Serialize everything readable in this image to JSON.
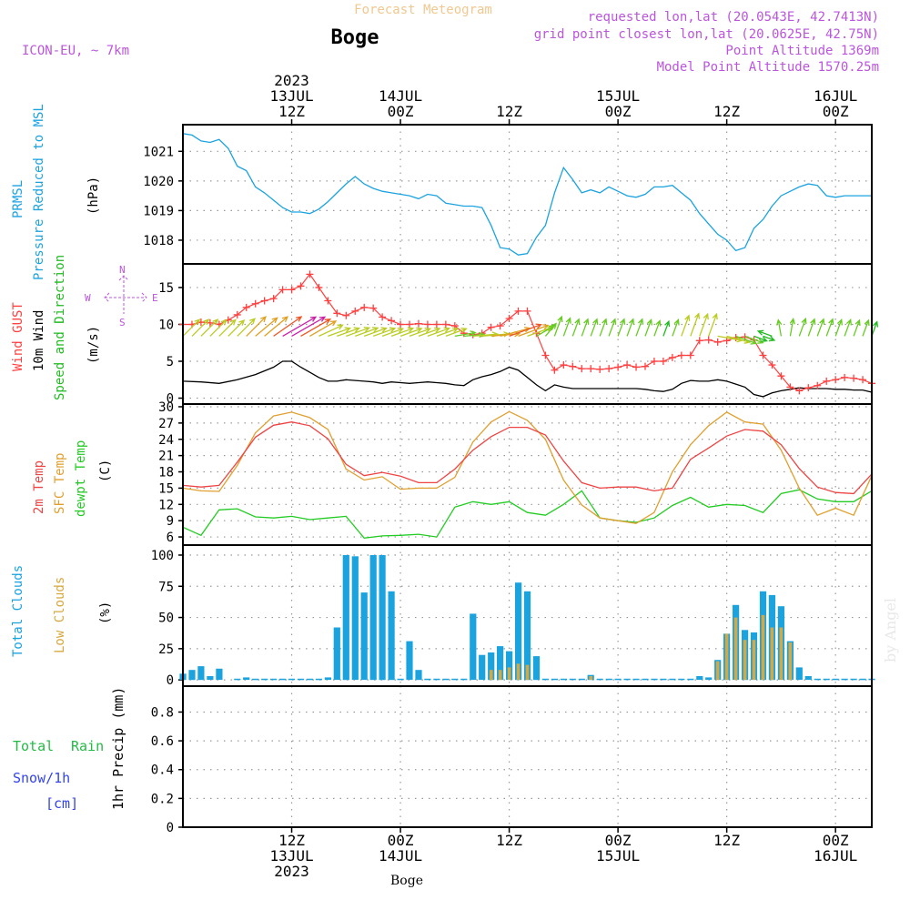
{
  "header": {
    "title_top": "Forecast Meteogram",
    "location": "Boge",
    "model": "ICON-EU, ~ 7km",
    "requested": "requested lon,lat (20.0543E, 42.7413N)",
    "gridpoint": "grid point closest lon,lat (20.0625E, 42.75N)",
    "point_alt": "Point Altitude 1369m",
    "model_alt": "Model Point Altitude 1570.25m",
    "footer_location": "Boge",
    "watermark": "by Angel"
  },
  "colors": {
    "prmsl": "#1ba3e0",
    "wind": "#000000",
    "gust": "#ff4040",
    "dir": "#22bb22",
    "temp": "#ee4444",
    "sfc": "#e0a030",
    "dew": "#22cc22",
    "total_clouds": "#1ba3e0",
    "low_clouds": "#d8a840",
    "rain": "#22bb44",
    "snow": "#3344ee",
    "purple": "#bb55dd",
    "orange_title": "#f0c890"
  },
  "time_axis": {
    "top_labels": [
      {
        "x": 12,
        "lines": [
          "2023",
          "13JUL",
          "12Z"
        ]
      },
      {
        "x": 24,
        "lines": [
          "14JUL",
          "00Z"
        ]
      },
      {
        "x": 36,
        "lines": [
          "12Z"
        ]
      },
      {
        "x": 48,
        "lines": [
          "15JUL",
          "00Z"
        ]
      },
      {
        "x": 60,
        "lines": [
          "12Z"
        ]
      },
      {
        "x": 72,
        "lines": [
          "16JUL",
          "00Z"
        ]
      }
    ],
    "bottom_labels": [
      {
        "x": 12,
        "lines": [
          "12Z",
          "13JUL",
          "2023"
        ]
      },
      {
        "x": 24,
        "lines": [
          "00Z",
          "14JUL"
        ]
      },
      {
        "x": 36,
        "lines": [
          "12Z"
        ]
      },
      {
        "x": 48,
        "lines": [
          "00Z",
          "15JUL"
        ]
      },
      {
        "x": 60,
        "lines": [
          "12Z"
        ]
      },
      {
        "x": 72,
        "lines": [
          "00Z",
          "16JUL"
        ]
      }
    ]
  },
  "panel_labels": {
    "p1": {
      "a": "PRMSL",
      "b": "Pressure Reduced to MSL",
      "unit": "(hPa)"
    },
    "p2": {
      "a": "Wind GUST",
      "b": "10m Wind",
      "c": "Speed and Direction",
      "unit": "(m/s)",
      "compass_n": "N",
      "compass_s": "S",
      "compass_w": "W",
      "compass_e": "E"
    },
    "p3": {
      "a": "2m Temp",
      "b": "SFC Temp",
      "c": "dewpt Temp",
      "unit": "(C)"
    },
    "p4": {
      "a": "Total Clouds",
      "b": "Low Clouds",
      "unit": "(%)"
    },
    "p5": {
      "a": "Total",
      "b": "Rain",
      "c": "Snow/1h",
      "d": "[cm]",
      "unit": "1hr Precip (mm)"
    }
  },
  "chart_data": [
    {
      "type": "line",
      "name": "PRMSL",
      "ylim": [
        1017.2,
        1021.9
      ],
      "yticks": [
        1018,
        1019,
        1020,
        1021
      ],
      "x": [
        0,
        1,
        2,
        3,
        4,
        5,
        6,
        7,
        8,
        9,
        10,
        11,
        12,
        13,
        14,
        15,
        16,
        17,
        18,
        19,
        20,
        21,
        22,
        23,
        24,
        25,
        26,
        27,
        28,
        29,
        30,
        31,
        32,
        33,
        34,
        35,
        36,
        37,
        38,
        39,
        40,
        41,
        42,
        43,
        44,
        45,
        46,
        47,
        48,
        49,
        50,
        51,
        52,
        53,
        54,
        55,
        56,
        57,
        58,
        59,
        60,
        61,
        62,
        63,
        64,
        65,
        66,
        67,
        68,
        69,
        70,
        71,
        72,
        73,
        74,
        75,
        76
      ],
      "values": [
        1021.6,
        1021.55,
        1021.35,
        1021.3,
        1021.4,
        1021.1,
        1020.5,
        1020.35,
        1019.8,
        1019.6,
        1019.35,
        1019.1,
        1018.95,
        1018.95,
        1018.9,
        1019.05,
        1019.3,
        1019.6,
        1019.9,
        1020.15,
        1019.9,
        1019.75,
        1019.65,
        1019.6,
        1019.55,
        1019.5,
        1019.4,
        1019.55,
        1019.5,
        1019.25,
        1019.2,
        1019.15,
        1019.15,
        1019.1,
        1018.5,
        1017.75,
        1017.7,
        1017.5,
        1017.55,
        1018.1,
        1018.5,
        1019.6,
        1020.45,
        1020.05,
        1019.6,
        1019.7,
        1019.6,
        1019.8,
        1019.65,
        1019.5,
        1019.45,
        1019.55,
        1019.8,
        1019.8,
        1019.85,
        1019.6,
        1019.35,
        1018.9,
        1018.55,
        1018.2,
        1018.0,
        1017.65,
        1017.75,
        1018.4,
        1018.7,
        1019.15,
        1019.5,
        1019.65,
        1019.8,
        1019.9,
        1019.85,
        1019.5,
        1019.45,
        1019.5,
        1019.5,
        1019.5,
        1019.5
      ]
    },
    {
      "type": "line",
      "name": "Wind",
      "ylim": [
        -0.8,
        18.2
      ],
      "yticks": [
        0,
        5,
        10,
        15
      ],
      "x_wind": [
        0,
        2,
        4,
        6,
        8,
        10,
        11,
        12,
        13,
        14,
        15,
        16,
        17,
        18,
        19,
        20,
        21,
        22,
        23,
        24,
        25,
        26,
        27,
        28,
        29,
        30,
        31,
        32,
        33,
        34,
        35,
        36,
        37,
        38,
        39,
        40,
        41,
        42,
        43,
        44,
        45,
        46,
        47,
        48,
        49,
        50,
        51,
        52,
        53,
        54,
        55,
        56,
        57,
        58,
        59,
        60,
        61,
        62,
        63,
        64,
        65,
        66,
        67,
        68,
        69,
        70,
        71,
        72,
        73,
        74,
        75,
        76
      ],
      "wind": [
        2.3,
        2.2,
        2.0,
        2.5,
        3.2,
        4.2,
        5.0,
        5.0,
        4.2,
        3.5,
        2.8,
        2.3,
        2.3,
        2.5,
        2.4,
        2.3,
        2.2,
        2.0,
        2.2,
        2.1,
        2.0,
        2.1,
        2.2,
        2.1,
        2.0,
        1.8,
        1.7,
        2.5,
        2.9,
        3.2,
        3.6,
        4.2,
        3.8,
        2.8,
        1.8,
        1.0,
        1.8,
        1.5,
        1.3,
        1.3,
        1.3,
        1.3,
        1.3,
        1.3,
        1.3,
        1.3,
        1.2,
        1.0,
        0.9,
        1.2,
        2.0,
        2.4,
        2.3,
        2.3,
        2.5,
        2.3,
        1.9,
        1.5,
        0.5,
        0.2,
        0.7,
        1.0,
        1.2,
        1.4,
        1.3,
        1.3,
        1.3,
        1.2,
        1.2,
        1.1,
        1.1,
        0.8
      ],
      "x_gust": [
        0,
        1,
        2,
        3,
        4,
        5,
        6,
        7,
        8,
        9,
        10,
        11,
        12,
        13,
        14,
        15,
        16,
        17,
        18,
        19,
        20,
        21,
        22,
        23,
        24,
        25,
        26,
        27,
        28,
        29,
        30,
        31,
        32,
        33,
        34,
        35,
        36,
        37,
        38,
        39,
        40,
        41,
        42,
        43,
        44,
        45,
        46,
        47,
        48,
        49,
        50,
        51,
        52,
        53,
        54,
        55,
        56,
        57,
        58,
        59,
        60,
        61,
        62,
        63,
        64,
        65,
        66,
        67,
        68,
        69,
        70,
        71,
        72,
        73,
        74,
        75,
        76
      ],
      "gust": [
        10,
        10,
        10.3,
        10.2,
        10,
        10.6,
        11.3,
        12.3,
        12.8,
        13.2,
        13.5,
        14.7,
        14.7,
        15.2,
        16.8,
        15.0,
        13.2,
        11.5,
        11.2,
        11.8,
        12.3,
        12.2,
        11.0,
        10.5,
        10.0,
        10.0,
        10.1,
        10.0,
        10.0,
        10.0,
        9.8,
        8.8,
        8.6,
        8.8,
        9.6,
        9.8,
        10.8,
        11.8,
        11.8,
        8.8,
        5.8,
        3.8,
        4.5,
        4.3,
        4.0,
        4.0,
        3.9,
        4.0,
        4.2,
        4.5,
        4.2,
        4.3,
        5.0,
        5.0,
        5.5,
        5.8,
        5.8,
        7.8,
        7.9,
        7.6,
        7.8,
        8.2,
        8.3,
        7.9,
        5.8,
        4.5,
        3.0,
        1.5,
        1.0,
        1.4,
        1.7,
        2.3,
        2.5,
        2.8,
        2.7,
        2.5,
        2.0
      ],
      "x_dir": [
        0,
        1,
        2,
        3,
        4,
        5,
        6,
        7,
        8,
        9,
        10,
        11,
        12,
        13,
        14,
        15,
        16,
        17,
        18,
        19,
        20,
        21,
        22,
        23,
        24,
        25,
        26,
        27,
        28,
        29,
        30,
        31,
        32,
        33,
        34,
        35,
        36,
        37,
        38,
        39,
        40,
        41,
        42,
        43,
        44,
        45,
        46,
        47,
        48,
        49,
        50,
        51,
        52,
        53,
        54,
        55,
        56,
        57,
        58,
        59,
        60,
        61,
        62,
        63,
        64,
        65,
        66,
        67,
        68,
        69,
        70,
        71,
        72,
        73,
        74,
        75,
        76
      ],
      "dir_speed": [
        2.3,
        2.3,
        2.3,
        2.2,
        2.2,
        2.1,
        2.5,
        3.0,
        3.2,
        3.5,
        4.2,
        5.0,
        5.0,
        4.2,
        3.5,
        2.8,
        2.3,
        2.3,
        2.5,
        2.4,
        2.3,
        2.2,
        2.0,
        2.2,
        2.1,
        2.0,
        2.1,
        2.2,
        2.1,
        2.0,
        1.8,
        1.7,
        2.5,
        2.9,
        3.2,
        3.6,
        4.2,
        3.8,
        2.8,
        1.8,
        1.0,
        1.8,
        1.5,
        1.3,
        1.3,
        1.3,
        1.3,
        1.3,
        1.3,
        1.3,
        1.3,
        1.2,
        1.0,
        0.9,
        1.2,
        2.0,
        2.4,
        2.3,
        2.3,
        2.5,
        2.3,
        1.9,
        1.5,
        0.5,
        0.2,
        0.7,
        1.0,
        1.2,
        1.4,
        1.3,
        1.3,
        1.3,
        1.2,
        1.2,
        1.1,
        1.1,
        0.8
      ],
      "dir_deg": [
        225,
        225,
        225,
        225,
        225,
        225,
        225,
        225,
        230,
        230,
        235,
        240,
        240,
        240,
        240,
        245,
        250,
        250,
        250,
        250,
        250,
        250,
        250,
        250,
        250,
        250,
        250,
        250,
        250,
        250,
        260,
        265,
        265,
        265,
        265,
        255,
        250,
        250,
        250,
        240,
        220,
        200,
        200,
        200,
        200,
        200,
        200,
        200,
        200,
        200,
        200,
        200,
        200,
        200,
        200,
        200,
        200,
        200,
        200,
        280,
        285,
        290,
        290,
        290,
        290,
        110,
        170,
        190,
        200,
        200,
        200,
        200,
        200,
        200,
        200,
        200,
        200
      ]
    },
    {
      "type": "line",
      "name": "Temperature",
      "ylim": [
        4.5,
        30.5
      ],
      "yticks": [
        6,
        9,
        12,
        15,
        18,
        21,
        24,
        27,
        30
      ],
      "x": [
        0,
        2,
        4,
        6,
        8,
        10,
        12,
        14,
        16,
        18,
        20,
        22,
        24,
        26,
        28,
        30,
        32,
        34,
        36,
        38,
        40,
        42,
        44,
        46,
        48,
        50,
        52,
        54,
        56,
        58,
        60,
        62,
        64,
        66,
        68,
        70,
        72,
        74,
        76
      ],
      "temp2m": [
        15.5,
        15.2,
        15.5,
        19.8,
        24.4,
        26.6,
        27.2,
        26.5,
        24.1,
        19.4,
        17.3,
        17.9,
        17.2,
        16.0,
        16.0,
        18.5,
        22.0,
        24.5,
        26.2,
        26.2,
        24.8,
        20.0,
        16.0,
        15.0,
        15.2,
        15.2,
        14.5,
        15.0,
        20.3,
        22.4,
        24.6,
        25.8,
        25.5,
        23.0,
        18.6,
        15.2,
        14.2,
        14.0,
        17.6
      ],
      "sfc": [
        15.0,
        14.5,
        14.4,
        19.2,
        25.2,
        28.3,
        29.0,
        28.0,
        25.8,
        18.5,
        16.5,
        17.1,
        14.8,
        15.0,
        15.0,
        17.0,
        23.5,
        27.2,
        29.1,
        27.5,
        24.0,
        16.5,
        11.9,
        9.5,
        9.0,
        8.5,
        10.5,
        18.0,
        23.0,
        26.5,
        29.0,
        27.2,
        26.8,
        22.0,
        15.0,
        10.0,
        11.3,
        10.0,
        17.3
      ],
      "dew": [
        7.8,
        6.3,
        11.0,
        11.2,
        9.7,
        9.5,
        9.8,
        9.2,
        9.5,
        9.8,
        5.8,
        6.2,
        6.3,
        6.5,
        6.0,
        11.5,
        12.5,
        12.0,
        12.5,
        10.5,
        10.0,
        12.0,
        14.5,
        9.5,
        9.0,
        8.7,
        9.5,
        11.8,
        13.3,
        11.5,
        12.0,
        11.8,
        10.5,
        14.0,
        14.7,
        13.0,
        12.5,
        12.5,
        14.5
      ]
    },
    {
      "type": "bar",
      "name": "Clouds",
      "ylim": [
        -5,
        108
      ],
      "yticks": [
        0,
        25,
        50,
        75,
        100
      ],
      "x": [
        0,
        1,
        2,
        3,
        4,
        6,
        7,
        8,
        9,
        10,
        11,
        12,
        13,
        14,
        15,
        16,
        17,
        18,
        19,
        20,
        21,
        22,
        23,
        24,
        25,
        26,
        27,
        28,
        29,
        30,
        31,
        32,
        33,
        34,
        35,
        36,
        37,
        38,
        39,
        40,
        41,
        42,
        43,
        44,
        45,
        46,
        47,
        48,
        49,
        50,
        51,
        52,
        53,
        54,
        55,
        56,
        57,
        58,
        59,
        60,
        61,
        62,
        63,
        64,
        65,
        66,
        67,
        68,
        69,
        70,
        71,
        72,
        73,
        74,
        75,
        76
      ],
      "total": [
        5,
        8,
        11,
        3,
        9,
        1,
        2,
        1,
        1,
        1,
        1,
        1,
        1,
        1,
        1,
        2,
        42,
        100,
        99,
        70,
        100,
        100,
        71,
        1,
        31,
        8,
        1,
        1,
        1,
        1,
        1,
        53,
        20,
        22,
        27,
        23,
        78,
        71,
        19,
        1,
        1,
        1,
        1,
        1,
        4,
        1,
        1,
        1,
        1,
        1,
        1,
        1,
        1,
        1,
        1,
        1,
        3,
        2,
        16,
        37,
        60,
        40,
        38,
        71,
        68,
        59,
        31,
        10,
        3,
        1,
        1,
        1,
        1,
        1,
        1,
        1
      ],
      "low": [
        0,
        0,
        0,
        0,
        0,
        0,
        0,
        0,
        0,
        0,
        0,
        0,
        0,
        0,
        0,
        0,
        0,
        0,
        0,
        0,
        0,
        0,
        0,
        0,
        0,
        0,
        0,
        0,
        0,
        0,
        0,
        0,
        0,
        8,
        8,
        10,
        13,
        12,
        0,
        0,
        0,
        0,
        0,
        0,
        3,
        0,
        0,
        0,
        0,
        0,
        0,
        0,
        0,
        0,
        0,
        0,
        0,
        0,
        15,
        37,
        50,
        32,
        32,
        52,
        42,
        42,
        30,
        0,
        0,
        0,
        0,
        0,
        0,
        0,
        0,
        0
      ]
    },
    {
      "type": "line",
      "name": "Precipitation",
      "ylim": [
        0,
        0.98
      ],
      "yticks": [
        "0",
        "0.2",
        "0.4",
        "0.6",
        "0.8"
      ],
      "x": [
        0,
        76
      ],
      "rain": [
        0,
        0
      ],
      "snow": [
        0,
        0
      ]
    }
  ]
}
